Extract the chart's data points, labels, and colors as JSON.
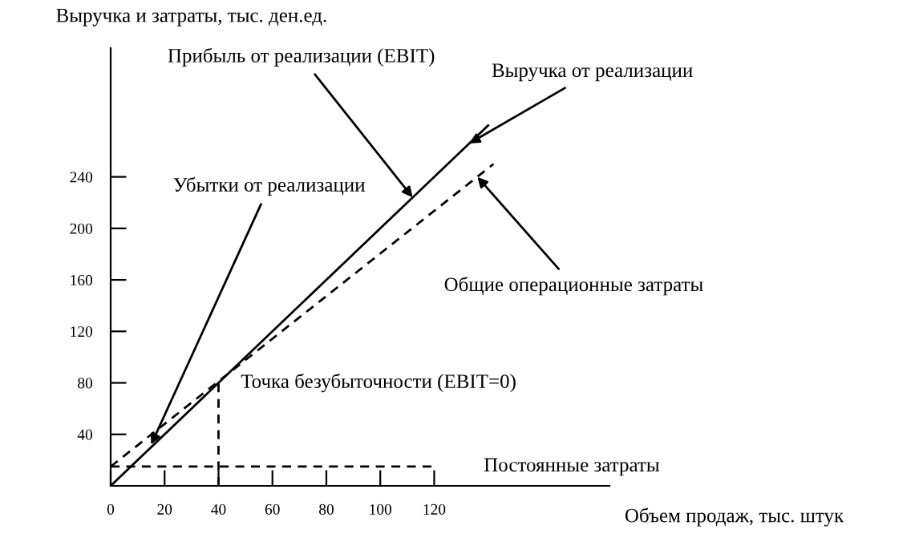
{
  "chart_data": {
    "type": "line",
    "xlabel": "Объем продаж, тыс. штук",
    "ylabel": "Выручка и затраты, тыс. ден.ед.",
    "xlim": [
      0,
      185
    ],
    "ylim": [
      0,
      340
    ],
    "xticks": [
      0,
      20,
      40,
      60,
      80,
      100,
      120
    ],
    "yticks": [
      40,
      80,
      120,
      160,
      200,
      240
    ],
    "grid": false,
    "legend": false,
    "marker": "none",
    "series": [
      {
        "color": "#000000",
        "line_style": "solid",
        "x": [
          0,
          140
        ],
        "values": [
          0,
          280
        ]
      },
      {
        "color": "#000000",
        "line_style": "dashed",
        "x": [
          0,
          142
        ],
        "values": [
          15,
          250
        ]
      },
      {
        "color": "#000000",
        "line_style": "dashed",
        "x": [
          0,
          121
        ],
        "values": [
          15,
          15
        ]
      }
    ],
    "ref_lines": [
      {
        "axis": "x",
        "value": 40,
        "color": "#000000",
        "line_style": "dashed"
      }
    ],
    "annotations": [
      {
        "text": "Выручка от реализации",
        "x": 133,
        "y": 266
      },
      {
        "text": "Прибыль от реализации (EBIT)",
        "x": 112,
        "y": 224
      },
      {
        "text": "Убытки от реализации",
        "x": 15,
        "y": 32
      },
      {
        "text": "Общие операционные затраты",
        "x": 136,
        "y": 240
      },
      {
        "text": "Точка безубыточности (EBIT=0)",
        "x": 40,
        "y": 80
      },
      {
        "text": "Постоянные затраты",
        "x": 121,
        "y": 15
      }
    ]
  }
}
